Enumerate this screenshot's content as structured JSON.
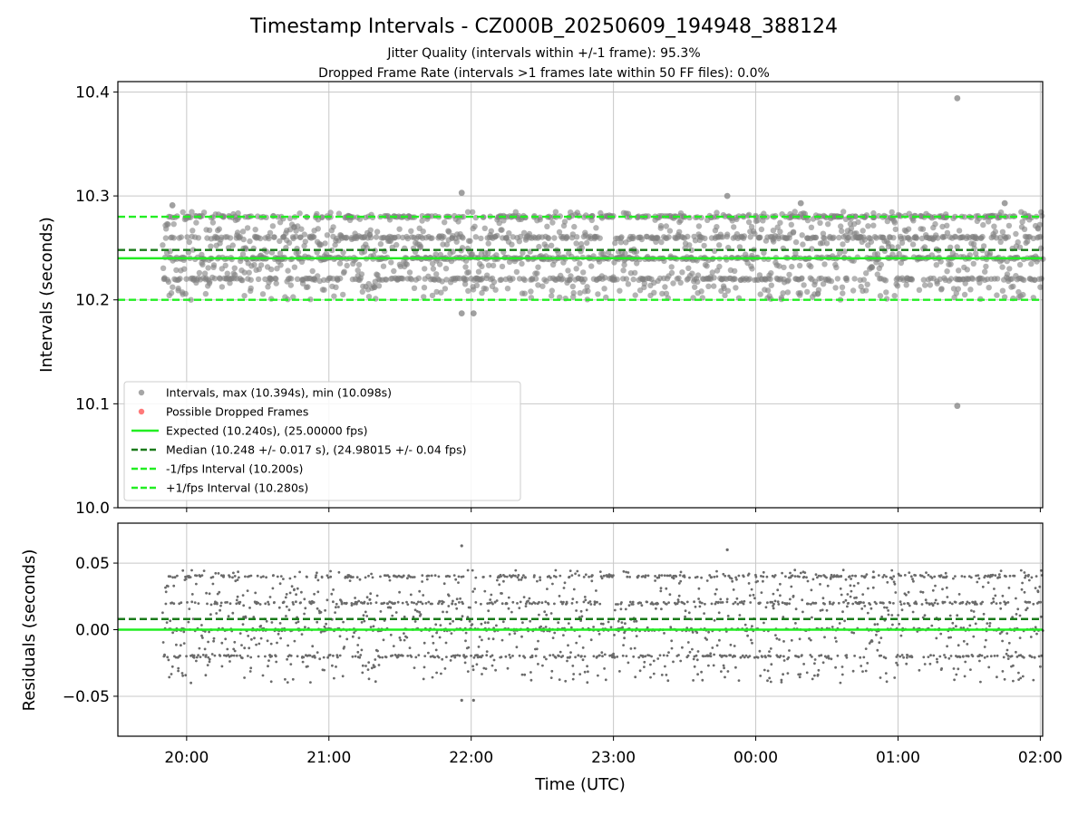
{
  "title": "Timestamp Intervals - CZ000B_20250609_194948_388124",
  "subtitle_line1": "Jitter Quality (intervals within +/-1 frame): 95.3%",
  "subtitle_line2": "Dropped Frame Rate (intervals >1 frames late within 50 FF files): 0.0%",
  "colors": {
    "points": "#808080",
    "dropped": "#ff4040",
    "expected": "#22ee22",
    "median": "#1a7a1a",
    "bound": "#22ee22",
    "residual_points": "#6a6a6a",
    "grid": "#c8c8c8"
  },
  "chart_data": [
    {
      "type": "scatter",
      "ylabel": "Intervals (seconds)",
      "xlabel": "",
      "ylim": [
        10.0,
        10.41
      ],
      "x_range": [
        "19:31",
        "02:01"
      ],
      "yticks": [
        "10.0",
        "10.1",
        "10.2",
        "10.3",
        "10.4"
      ],
      "ytick_values": [
        10.0,
        10.1,
        10.2,
        10.3,
        10.4
      ],
      "grid": true,
      "legend_placement": "lower-left",
      "points_summary": {
        "start": "19:50",
        "end": "02:01",
        "count": 2150,
        "median": 10.248,
        "common_levels": [
          10.22,
          10.24,
          10.26,
          10.28
        ],
        "spread": 0.017
      },
      "outliers": [
        {
          "x": "21:56",
          "y": 10.303
        },
        {
          "x": "23:48",
          "y": 10.3
        },
        {
          "x": "01:25",
          "y": 10.394
        },
        {
          "x": "01:25",
          "y": 10.098
        },
        {
          "x": "21:56",
          "y": 10.187
        },
        {
          "x": "22:01",
          "y": 10.187
        },
        {
          "x": "19:54",
          "y": 10.291
        },
        {
          "x": "00:19",
          "y": 10.293
        },
        {
          "x": "01:45",
          "y": 10.293
        }
      ],
      "lines": [
        {
          "name": "Expected (10.240s), (25.00000 fps)",
          "y": 10.24,
          "style": "solid",
          "color_key": "expected"
        },
        {
          "name": "Median (10.248 +/- 0.017 s), (24.98015 +/- 0.04 fps)",
          "y": 10.248,
          "style": "dashed",
          "color_key": "median"
        },
        {
          "name": "-1/fps Interval (10.200s)",
          "y": 10.2,
          "style": "dashed",
          "color_key": "bound"
        },
        {
          "name": "+1/fps Interval (10.280s)",
          "y": 10.28,
          "style": "dashed",
          "color_key": "bound"
        }
      ],
      "legend": [
        {
          "label": "Intervals, max (10.394s), min (10.098s)",
          "kind": "dot",
          "color_key": "points"
        },
        {
          "label": "Possible Dropped Frames",
          "kind": "dot",
          "color_key": "dropped"
        },
        {
          "label": "Expected (10.240s), (25.00000 fps)",
          "kind": "solid",
          "color_key": "expected"
        },
        {
          "label": "Median (10.248 +/- 0.017 s), (24.98015 +/- 0.04 fps)",
          "kind": "dashed",
          "color_key": "median"
        },
        {
          "label": "-1/fps Interval (10.200s)",
          "kind": "dashed",
          "color_key": "bound"
        },
        {
          "label": "+1/fps Interval (10.280s)",
          "kind": "dashed",
          "color_key": "bound"
        }
      ]
    },
    {
      "type": "scatter",
      "ylabel": "Residuals (seconds)",
      "xlabel": "Time (UTC)",
      "ylim": [
        -0.08,
        0.08
      ],
      "x_range": [
        "19:31",
        "02:01"
      ],
      "yticks": [
        "−0.05",
        "0.00",
        "0.05"
      ],
      "ytick_values": [
        -0.05,
        0.0,
        0.05
      ],
      "xticks": [
        "20:00",
        "21:00",
        "22:00",
        "23:00",
        "00:00",
        "01:00",
        "02:00"
      ],
      "grid": true,
      "lines": [
        {
          "y": 0.0,
          "style": "solid",
          "color_key": "expected"
        },
        {
          "y": 0.008,
          "style": "dashed",
          "color_key": "median"
        }
      ],
      "points_summary": {
        "relation": "interval minus 10.240",
        "count": 2150
      },
      "outliers": [
        {
          "x": "21:56",
          "y": 0.063
        },
        {
          "x": "23:48",
          "y": 0.06
        },
        {
          "x": "21:56",
          "y": -0.053
        },
        {
          "x": "22:01",
          "y": -0.053
        }
      ]
    }
  ]
}
